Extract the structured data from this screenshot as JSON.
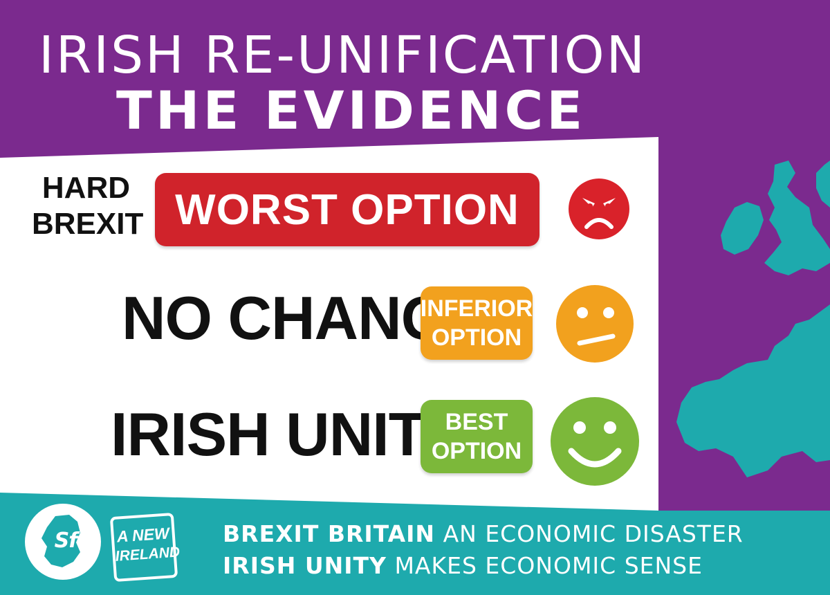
{
  "header": {
    "line1": "IRISH RE-UNIFICATION",
    "line2": "THE EVIDENCE"
  },
  "rows": [
    {
      "condition": [
        "HARD",
        "BREXIT"
      ],
      "rating": [
        "WORST OPTION"
      ],
      "rating_color": "#d0232b",
      "face": "angry-face-icon"
    },
    {
      "condition": [
        "NO CHANGE"
      ],
      "rating": [
        "INFERIOR",
        "OPTION"
      ],
      "rating_color": "#f2a11e",
      "face": "neutral-face-icon"
    },
    {
      "condition": [
        "IRISH UNITY"
      ],
      "rating": [
        "BEST",
        "OPTION"
      ],
      "rating_color": "#7cb83a",
      "face": "smiling-face-icon"
    }
  ],
  "footer": {
    "logo_text": "Sf",
    "badge": [
      "A NEW",
      "IRELAND"
    ],
    "line1_bold": "BREXIT BRITAIN",
    "line1_rest": "AN ECONOMIC DISASTER",
    "line2_bold": "IRISH UNITY",
    "line2_rest": "MAKES ECONOMIC SENSE"
  },
  "colors": {
    "purple": "#7b2a8e",
    "teal": "#1eaaad",
    "white": "#ffffff",
    "angry": "#d9222a",
    "neutral": "#f2a11e",
    "happy": "#7cb83a"
  }
}
